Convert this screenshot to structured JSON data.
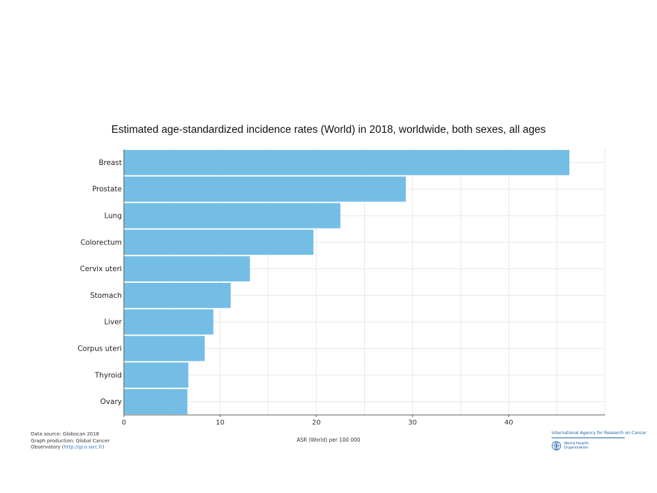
{
  "chart_data": {
    "type": "bar",
    "orientation": "horizontal",
    "title": "Estimated age-standardized incidence rates (World) in 2018, worldwide, both sexes, all ages",
    "xlabel": "ASR (World) per 100 000",
    "ylabel": "",
    "categories": [
      "Breast",
      "Prostate",
      "Lung",
      "Colorectum",
      "Cervix uteri",
      "Stomach",
      "Liver",
      "Corpus uteri",
      "Thyroid",
      "Ovary"
    ],
    "values": [
      46.3,
      29.3,
      22.5,
      19.7,
      13.1,
      11.1,
      9.3,
      8.4,
      6.7,
      6.6
    ],
    "xlim": [
      0,
      50
    ],
    "xticks": [
      0,
      10,
      20,
      30,
      40
    ],
    "grid": true,
    "bar_color": "#74bee6"
  },
  "footer": {
    "data_source": "Data source: Globocan 2018",
    "graph_production": "Graph production: Global Cancer",
    "observatory": "Observatory (",
    "link": "http://gco.iarc.fr",
    "observatory_end": ")"
  },
  "logos": {
    "iarc_name": "International Agency for Research on Cancer",
    "who_name": "World Health Organization"
  }
}
